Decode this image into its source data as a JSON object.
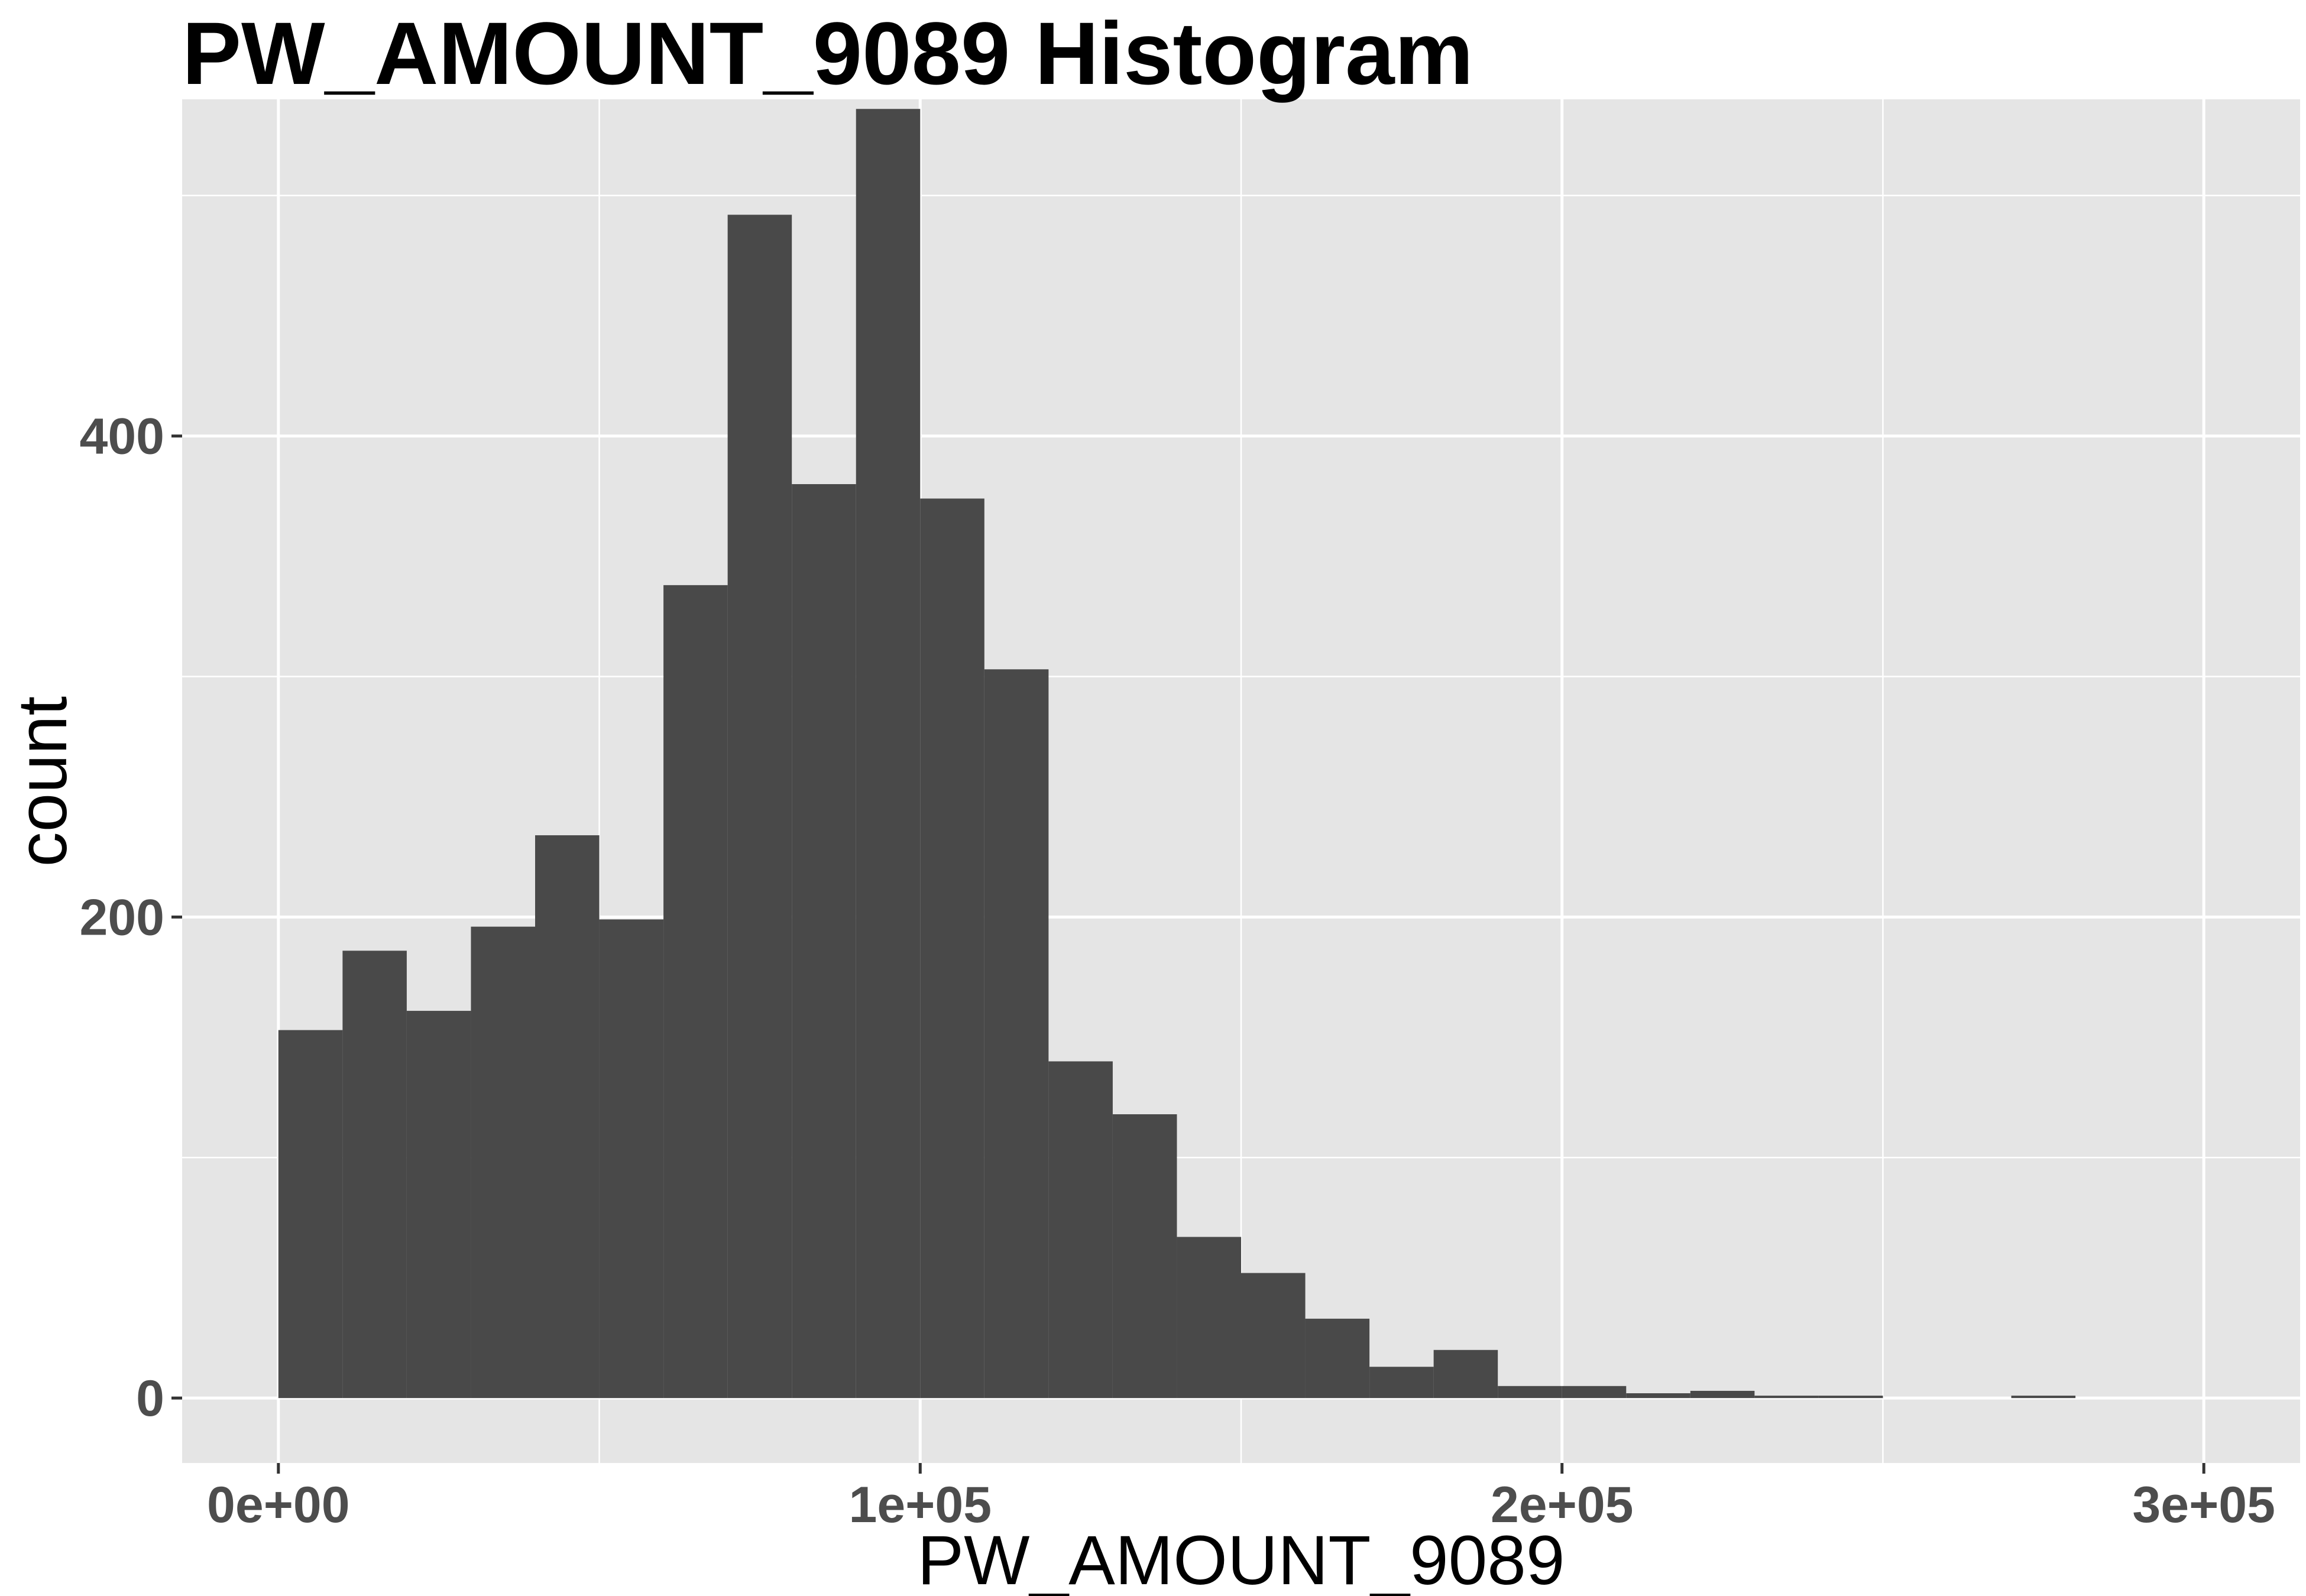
{
  "chart_data": {
    "type": "bar",
    "title": "PW_AMOUNT_9089 Histogram",
    "xlabel": "PW_AMOUNT_9089",
    "ylabel": "count",
    "xlim": [
      -15000,
      315000
    ],
    "ylim": [
      -27,
      540
    ],
    "x_ticks": [
      {
        "value": 0,
        "label": "0e+00"
      },
      {
        "value": 100000,
        "label": "1e+05"
      },
      {
        "value": 200000,
        "label": "2e+05"
      },
      {
        "value": 300000,
        "label": "3e+05"
      }
    ],
    "y_ticks": [
      {
        "value": 0,
        "label": "0"
      },
      {
        "value": 200,
        "label": "200"
      },
      {
        "value": 400,
        "label": "400"
      }
    ],
    "bin_width": 10000,
    "bins": [
      {
        "start": 0,
        "count": 153
      },
      {
        "start": 10000,
        "count": 186
      },
      {
        "start": 20000,
        "count": 161
      },
      {
        "start": 30000,
        "count": 196
      },
      {
        "start": 40000,
        "count": 234
      },
      {
        "start": 50000,
        "count": 199
      },
      {
        "start": 60000,
        "count": 338
      },
      {
        "start": 70000,
        "count": 492
      },
      {
        "start": 80000,
        "count": 380
      },
      {
        "start": 90000,
        "count": 536
      },
      {
        "start": 100000,
        "count": 374
      },
      {
        "start": 110000,
        "count": 303
      },
      {
        "start": 120000,
        "count": 140
      },
      {
        "start": 130000,
        "count": 118
      },
      {
        "start": 140000,
        "count": 67
      },
      {
        "start": 150000,
        "count": 52
      },
      {
        "start": 160000,
        "count": 33
      },
      {
        "start": 170000,
        "count": 13
      },
      {
        "start": 180000,
        "count": 20
      },
      {
        "start": 190000,
        "count": 5
      },
      {
        "start": 200000,
        "count": 5
      },
      {
        "start": 210000,
        "count": 2
      },
      {
        "start": 220000,
        "count": 3
      },
      {
        "start": 230000,
        "count": 1
      },
      {
        "start": 240000,
        "count": 1
      },
      {
        "start": 250000,
        "count": 0
      },
      {
        "start": 260000,
        "count": 0
      },
      {
        "start": 270000,
        "count": 1
      },
      {
        "start": 280000,
        "count": 0
      },
      {
        "start": 290000,
        "count": 0
      }
    ],
    "grid": true,
    "colors": {
      "panel_background": "#e5e5e5",
      "gridline": "#ffffff",
      "bar_fill": "#494949",
      "tick_label": "#4d4d4d",
      "text": "#000000"
    }
  }
}
